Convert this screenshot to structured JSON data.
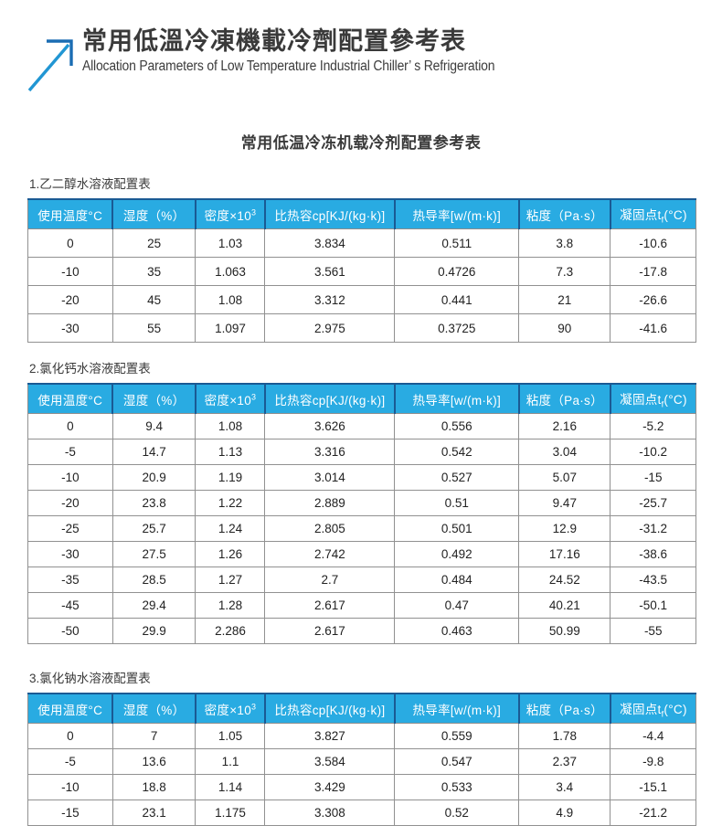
{
  "header": {
    "title_zh": "常用低溫冷凍機載冷劑配置參考表",
    "subtitle_en": "Allocation Parameters of Low Temperature Industrial Chiller’ s Refrigeration",
    "icon": "arrow-up-right-icon"
  },
  "document_title": "常用低温冷冻机载冷剂配置参考表",
  "colors": {
    "table_header_bg": "#29abe2",
    "table_header_divider": "#1a5a94",
    "table_border": "#8c8c8c",
    "icon_blue_dark": "#1b6db3",
    "icon_blue_light": "#2196d3",
    "text": "#3a3a3a"
  },
  "columns": [
    {
      "label": "使用温度°C",
      "html": "使用温度°C"
    },
    {
      "label": "湿度（%）",
      "html": "湿度（%）"
    },
    {
      "label": "密度×10³",
      "html": "密度×10<sup>3</sup>"
    },
    {
      "label": "比热容cp[KJ/(kg·k)]",
      "html": "比热容cp[KJ/(kg·k)]"
    },
    {
      "label": "热导率[w/(m·k)]",
      "html": "热导率[w/(m·k)]"
    },
    {
      "label": "粘度（Pa·s）",
      "html": "粘度（Pa·s）"
    },
    {
      "label": "凝固点tf(°C)",
      "html": "凝固点t<sub>f</sub>(°C)"
    }
  ],
  "tables": [
    {
      "section_label": "1.乙二醇水溶液配置表",
      "rows": [
        [
          "0",
          "25",
          "1.03",
          "3.834",
          "0.511",
          "3.8",
          "-10.6"
        ],
        [
          "-10",
          "35",
          "1.063",
          "3.561",
          "0.4726",
          "7.3",
          "-17.8"
        ],
        [
          "-20",
          "45",
          "1.08",
          "3.312",
          "0.441",
          "21",
          "-26.6"
        ],
        [
          "-30",
          "55",
          "1.097",
          "2.975",
          "0.3725",
          "90",
          "-41.6"
        ]
      ]
    },
    {
      "section_label": "2.氯化钙水溶液配置表",
      "rows": [
        [
          "0",
          "9.4",
          "1.08",
          "3.626",
          "0.556",
          "2.16",
          "-5.2"
        ],
        [
          "-5",
          "14.7",
          "1.13",
          "3.316",
          "0.542",
          "3.04",
          "-10.2"
        ],
        [
          "-10",
          "20.9",
          "1.19",
          "3.014",
          "0.527",
          "5.07",
          "-15"
        ],
        [
          "-20",
          "23.8",
          "1.22",
          "2.889",
          "0.51",
          "9.47",
          "-25.7"
        ],
        [
          "-25",
          "25.7",
          "1.24",
          "2.805",
          "0.501",
          "12.9",
          "-31.2"
        ],
        [
          "-30",
          "27.5",
          "1.26",
          "2.742",
          "0.492",
          "17.16",
          "-38.6"
        ],
        [
          "-35",
          "28.5",
          "1.27",
          "2.7",
          "0.484",
          "24.52",
          "-43.5"
        ],
        [
          "-45",
          "29.4",
          "1.28",
          "2.617",
          "0.47",
          "40.21",
          "-50.1"
        ],
        [
          "-50",
          "29.9",
          "2.286",
          "2.617",
          "0.463",
          "50.99",
          "-55"
        ]
      ]
    },
    {
      "section_label": "3.氯化钠水溶液配置表",
      "rows": [
        [
          "0",
          "7",
          "1.05",
          "3.827",
          "0.559",
          "1.78",
          "-4.4"
        ],
        [
          "-5",
          "13.6",
          "1.1",
          "3.584",
          "0.547",
          "2.37",
          "-9.8"
        ],
        [
          "-10",
          "18.8",
          "1.14",
          "3.429",
          "0.533",
          "3.4",
          "-15.1"
        ],
        [
          "-15",
          "23.1",
          "1.175",
          "3.308",
          "0.52",
          "4.9",
          "-21.2"
        ]
      ]
    }
  ]
}
